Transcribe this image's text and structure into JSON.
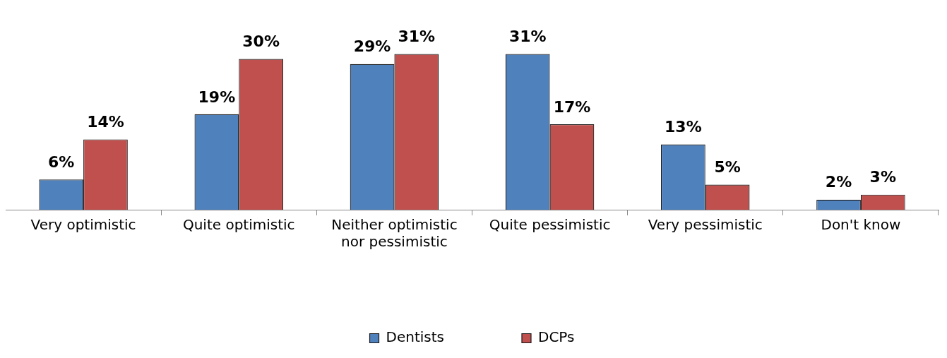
{
  "chart_data": {
    "type": "bar",
    "categories": [
      "Very optimistic",
      "Quite optimistic",
      "Neither optimistic nor pessimistic",
      "Quite pessimistic",
      "Very pessimistic",
      "Don't know"
    ],
    "series": [
      {
        "name": "Dentists",
        "color": "#4f81bd",
        "values": [
          6,
          19,
          29,
          31,
          13,
          2
        ],
        "value_labels": [
          "6%",
          "19%",
          "29%",
          "31%",
          "13%",
          "2%"
        ]
      },
      {
        "name": "DCPs",
        "color": "#c0504d",
        "values": [
          14,
          30,
          31,
          17,
          5,
          3
        ],
        "value_labels": [
          "14%",
          "30%",
          "31%",
          "17%",
          "5%",
          "3%"
        ]
      }
    ],
    "legend": "bottom",
    "grid": false
  }
}
